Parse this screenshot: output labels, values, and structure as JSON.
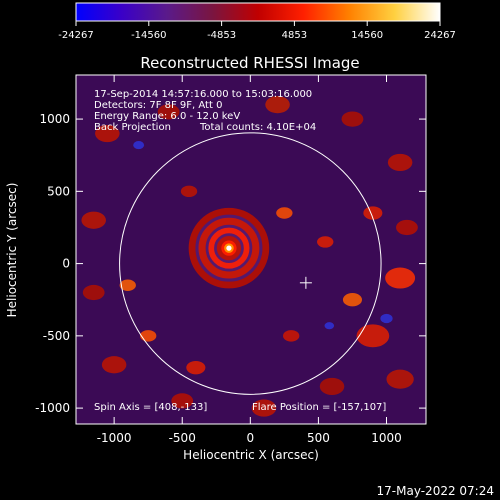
{
  "colorbar": {
    "ticks": [
      "-24267",
      "-14560",
      "-4853",
      "4853",
      "14560",
      "24267"
    ],
    "stops": [
      "#0000ff",
      "#3a00c8",
      "#5a1a8a",
      "#7a1540",
      "#c00000",
      "#ff2000",
      "#ff8000",
      "#ffd040",
      "#ffffff"
    ]
  },
  "chart_data": {
    "type": "heatmap",
    "title": "Reconstructed RHESSI Image",
    "xlabel": "Heliocentric X (arcsec)",
    "ylabel": "Heliocentric Y (arcsec)",
    "xlim": [
      -1280,
      1290
    ],
    "ylim": [
      -1110,
      1305
    ],
    "xticks": [
      -1000,
      -500,
      0,
      500,
      1000
    ],
    "yticks": [
      -1000,
      -500,
      0,
      500,
      1000
    ],
    "colorbar_range": [
      -24267,
      24267
    ],
    "annotations": [
      "17-Sep-2014 14:57:16.000 to 15:03:16.000",
      "Detectors: 7F 8F 9F, Att 0",
      "Energy Range: 6.0 - 12.0 keV",
      "Back Projection",
      "Total counts: 4.10E+04"
    ],
    "spin_axis": "Spin Axis = [408,-133]",
    "flare_position": "Flare Position = [-157,107]",
    "source": {
      "x": -157,
      "y": 107
    },
    "spin_axis_point": {
      "x": 408,
      "y": -133
    },
    "solar_limb_radius": 960,
    "colors": {
      "background": "#000000",
      "axes": "#ffffff",
      "peak": "#ffffff",
      "ring": "#ff2000",
      "trough": "#4a1a78"
    }
  },
  "footer": {
    "timestamp": "17-May-2022 07:24"
  }
}
